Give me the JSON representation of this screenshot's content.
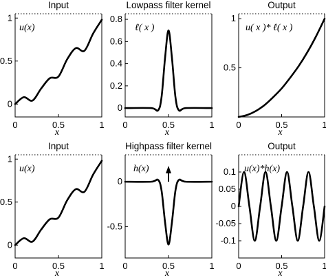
{
  "chart_data": [
    {
      "type": "line",
      "title": "Input",
      "annotation": "u(x)",
      "xlabel": "x",
      "xlim": [
        0,
        1
      ],
      "ylim": [
        -0.15,
        1.05
      ],
      "xticks": [
        "0",
        "0.5",
        "1"
      ],
      "yticks": [
        "0",
        "0.5",
        "1"
      ],
      "x": [
        0,
        0.1,
        0.2,
        0.3,
        0.4,
        0.5,
        0.6,
        0.7,
        0.8,
        0.9,
        1.0
      ],
      "y": [
        0.0,
        0.08,
        0.04,
        0.18,
        0.3,
        0.32,
        0.52,
        0.65,
        0.62,
        0.82,
        0.98
      ]
    },
    {
      "type": "line",
      "title": "Lowpass filter kernel",
      "annotation": "ℓ( x )",
      "xlabel": "x",
      "xlim": [
        0,
        1
      ],
      "ylim": [
        -0.08,
        0.85
      ],
      "xticks": [
        "0",
        "0.5",
        "1"
      ],
      "yticks": [
        "0",
        "0.2",
        "0.4",
        "0.6",
        "0.8"
      ],
      "x": [
        0,
        0.3,
        0.38,
        0.42,
        0.46,
        0.5,
        0.54,
        0.58,
        0.62,
        0.7,
        1.0
      ],
      "y": [
        0,
        0,
        -0.02,
        0.1,
        0.45,
        0.7,
        0.45,
        0.1,
        -0.02,
        0,
        0
      ]
    },
    {
      "type": "line",
      "title": "Output",
      "annotation": "u( x )* ℓ( x )",
      "xlabel": "x",
      "xlim": [
        0,
        1
      ],
      "ylim": [
        0,
        1.05
      ],
      "xticks": [
        "0",
        "0.5",
        "1"
      ],
      "yticks": [
        "0.5",
        "1"
      ],
      "x": [
        0,
        0.1,
        0.2,
        0.3,
        0.4,
        0.5,
        0.6,
        0.7,
        0.8,
        0.9,
        1.0
      ],
      "y": [
        0,
        0.02,
        0.06,
        0.12,
        0.2,
        0.29,
        0.4,
        0.52,
        0.66,
        0.82,
        1.0
      ]
    },
    {
      "type": "line",
      "title": "Input",
      "annotation": "u(x)",
      "xlabel": "x",
      "xlim": [
        0,
        1
      ],
      "ylim": [
        -0.15,
        1.05
      ],
      "xticks": [
        "0",
        "0.5",
        "1"
      ],
      "yticks": [
        "0",
        "0.5",
        "1"
      ],
      "x": [
        0,
        0.1,
        0.2,
        0.3,
        0.4,
        0.5,
        0.6,
        0.7,
        0.8,
        0.9,
        1.0
      ],
      "y": [
        0.0,
        0.08,
        0.04,
        0.18,
        0.3,
        0.32,
        0.52,
        0.65,
        0.62,
        0.82,
        0.98
      ]
    },
    {
      "type": "line",
      "title": "Highpass filter kernel",
      "annotation": "h(x)",
      "xlabel": "x",
      "xlim": [
        0,
        1
      ],
      "ylim": [
        -0.85,
        0.3
      ],
      "xticks": [
        "0",
        "0.5",
        "1"
      ],
      "yticks": [
        "0",
        "-0.5"
      ],
      "impulse": {
        "x": 0.5,
        "label": "δ"
      },
      "x": [
        0,
        0.3,
        0.38,
        0.42,
        0.46,
        0.5,
        0.54,
        0.58,
        0.62,
        0.7,
        1.0
      ],
      "y": [
        0,
        0,
        0.02,
        -0.1,
        -0.45,
        -0.7,
        -0.45,
        -0.1,
        0.02,
        0,
        0
      ]
    },
    {
      "type": "line",
      "title": "Output",
      "annotation": "u(x)*h(x)",
      "xlabel": "x",
      "xlim": [
        0,
        1
      ],
      "ylim": [
        -0.15,
        0.15
      ],
      "xticks": [
        "0",
        "0.5",
        "1"
      ],
      "yticks": [
        "0.1",
        "0.05",
        "0",
        "-0.05",
        "-0.1"
      ],
      "x": [
        0,
        0.0625,
        0.125,
        0.1875,
        0.25,
        0.3125,
        0.375,
        0.4375,
        0.5,
        0.5625,
        0.625,
        0.6875,
        0.75,
        0.8125,
        0.875,
        0.9375,
        1.0
      ],
      "y": [
        0.0,
        0.1,
        0.0,
        -0.1,
        0.0,
        0.1,
        0.0,
        -0.1,
        0.0,
        0.1,
        0.0,
        -0.1,
        0.0,
        0.1,
        0.0,
        -0.1,
        0.0
      ]
    }
  ]
}
